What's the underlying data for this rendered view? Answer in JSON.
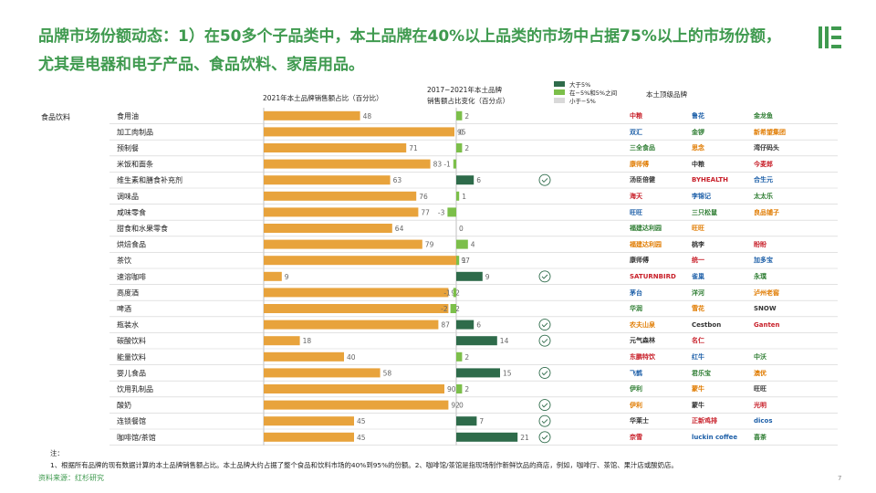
{
  "title": "品牌市场份额动态：1）在50多个子品类中，本土品牌在40%以上品类的市场中占据75%以上的市场份额，尤其是电器和电子产品、食品饮料、家居用品。",
  "headers": {
    "share": "2021年本土品牌销售额占比（百分比）",
    "change_line1": "2017−2021年本土品牌",
    "change_line2": "销售额占比变化（百分点）",
    "brands": "本土顶级品牌"
  },
  "legend": [
    {
      "label": "大于5%",
      "color": "#2e6b4a"
    },
    {
      "label": "在−5%和5%之间",
      "color": "#7cbf4a"
    },
    {
      "label": "小于−5%",
      "color": "#d9d9d9"
    }
  ],
  "colors": {
    "share_bar": "#e8a33c",
    "big_increase": "#2e6b4a",
    "mid": "#7cbf4a",
    "check": "#2e6b4a",
    "title": "#3f9a4f"
  },
  "chart_data": {
    "type": "bar",
    "group": "食品饮料",
    "categories": [
      "食用油",
      "加工肉制品",
      "预制餐",
      "米饭和面条",
      "维生素和膳食补充剂",
      "调味品",
      "咸味零食",
      "甜食和水果零食",
      "烘焙食品",
      "茶饮",
      "速溶咖啡",
      "高度酒",
      "啤酒",
      "瓶装水",
      "碳酸饮料",
      "能量饮料",
      "婴儿食品",
      "饮用乳制品",
      "酸奶",
      "连锁餐馆",
      "咖啡馆/茶馆"
    ],
    "series": [
      {
        "name": "2021年本土品牌销售额占比（百分比）",
        "values": [
          48,
          95,
          71,
          83,
          63,
          76,
          77,
          64,
          79,
          97,
          9,
          92,
          92,
          87,
          18,
          40,
          58,
          90,
          92,
          45,
          45
        ]
      },
      {
        "name": "2017−2021年本土品牌销售额占比变化（百分点）",
        "values": [
          2,
          0,
          2,
          -1,
          6,
          1,
          -3,
          0,
          4,
          1,
          9,
          -1,
          -2,
          6,
          14,
          2,
          15,
          2,
          0,
          7,
          21
        ]
      }
    ],
    "checked": [
      false,
      false,
      false,
      false,
      true,
      false,
      false,
      false,
      false,
      false,
      true,
      false,
      false,
      true,
      true,
      false,
      true,
      false,
      true,
      true,
      true
    ],
    "share_range": [
      0,
      100
    ]
  },
  "brands": [
    [
      "中粮",
      "鲁花",
      "金龙鱼"
    ],
    [
      "双汇",
      "金锣",
      "新希望集团"
    ],
    [
      "三全食品",
      "思念",
      "湾仔码头"
    ],
    [
      "康师傅",
      "中粮",
      "今麦郎"
    ],
    [
      "汤臣倍健",
      "BYHEALTH",
      "合生元"
    ],
    [
      "海天",
      "李锦记",
      "太太乐"
    ],
    [
      "旺旺",
      "三只松鼠",
      "良品铺子"
    ],
    [
      "福建达利园",
      "旺旺"
    ],
    [
      "福建达利园",
      "桃李",
      "盼盼"
    ],
    [
      "康师傅",
      "统一",
      "加多宝"
    ],
    [
      "SATURNBIRD",
      "雀巢",
      "永璞"
    ],
    [
      "茅台",
      "洋河",
      "泸州老窖"
    ],
    [
      "华润",
      "雪花",
      "SNOW"
    ],
    [
      "农夫山泉",
      "Cestbon",
      "Ganten"
    ],
    [
      "元气森林",
      "名仁"
    ],
    [
      "东鹏特饮",
      "红牛",
      "中沃"
    ],
    [
      "飞鹤",
      "君乐宝",
      "澳优"
    ],
    [
      "伊利",
      "蒙牛",
      "旺旺"
    ],
    [
      "伊利",
      "蒙牛",
      "光明"
    ],
    [
      "华莱士",
      "正新鸡排",
      "dicos"
    ],
    [
      "奈雪",
      "luckin coffee",
      "喜茶"
    ]
  ],
  "note_label": "注：",
  "note": "1、根据所有品牌的现有数据计算的本土品牌销售额占比。本土品牌大约占据了整个食品和饮料市场的40%到95%的份额。2、咖啡馆/茶馆是指现场制作新鲜饮品的商店，例如，咖啡厅、茶馆、果汁店或酸奶店。",
  "source": "资料来源：红杉研究",
  "page_number": "7",
  "logo_icon": "sequoia-logo-icon"
}
